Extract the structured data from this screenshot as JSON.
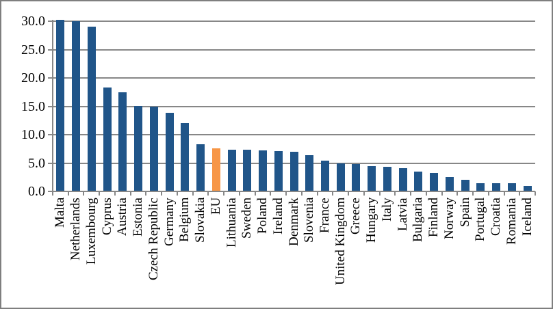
{
  "chart_data": {
    "type": "bar",
    "title": "",
    "xlabel": "",
    "ylabel": "",
    "legend": "none",
    "grid": true,
    "ylim": [
      0,
      30
    ],
    "ytick_interval": 5,
    "ytick_labels": [
      "0.0",
      "5.0",
      "10.0",
      "15.0",
      "20.0",
      "25.0",
      "30.0"
    ],
    "categories": [
      "Malta",
      "Netherlands",
      "Luxembourg",
      "Cyprus",
      "Austria",
      "Estonia",
      "Czech Republic",
      "Germany",
      "Belgium",
      "Slovakia",
      "EU",
      "Lithuania",
      "Sweden",
      "Poland",
      "Ireland",
      "Denmark",
      "Slovenia",
      "France",
      "United Kingdom",
      "Greece",
      "Hungary",
      "Italy",
      "Latvia",
      "Bulgaria",
      "Finland",
      "Norway",
      "Spain",
      "Portugal",
      "Croatia",
      "Romania",
      "Iceland"
    ],
    "values": [
      30.3,
      30.0,
      29.0,
      18.3,
      17.5,
      15.1,
      15.0,
      13.8,
      12.0,
      8.3,
      7.6,
      7.4,
      7.3,
      7.2,
      7.1,
      7.0,
      6.4,
      5.4,
      5.0,
      4.8,
      4.4,
      4.3,
      4.1,
      3.5,
      3.3,
      2.5,
      2.1,
      1.5,
      1.4,
      1.4,
      1.0
    ],
    "highlighted_category": "EU",
    "highlight_index": 10,
    "colors": {
      "bar": "#205589",
      "highlight": "#F79646",
      "gridline": "#878787",
      "axis": "#878787",
      "text": "#000000",
      "border": "#7F7F7F",
      "background": "#FFFFFF"
    }
  }
}
